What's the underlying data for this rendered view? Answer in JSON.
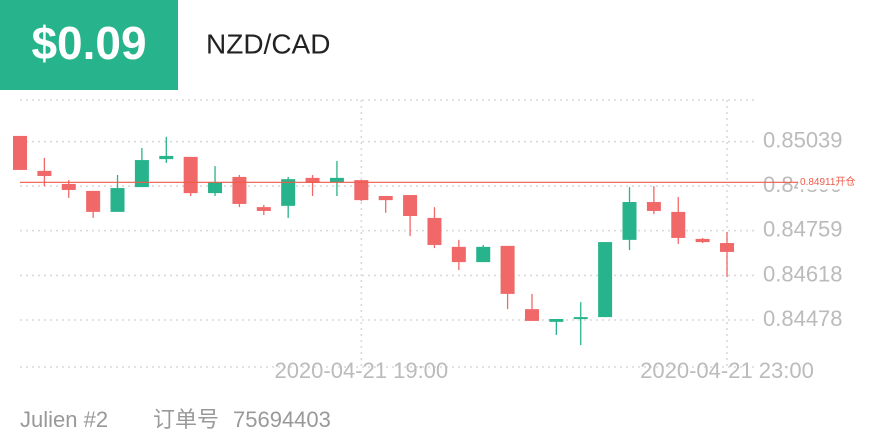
{
  "header": {
    "profit": "$0.09",
    "symbol": "NZD/CAD"
  },
  "chart_data": {
    "type": "candlestick",
    "categories": [
      null,
      null,
      null,
      null,
      null,
      null,
      null,
      null,
      null,
      null,
      null,
      null,
      null,
      null,
      "2020-04-21 19:00",
      null,
      null,
      null,
      null,
      null,
      null,
      null,
      null,
      null,
      null,
      null,
      null,
      null,
      null,
      "2020-04-21 23:00"
    ],
    "open": [
      0.85057,
      0.84947,
      0.84906,
      0.84884,
      0.84818,
      0.84896,
      0.84984,
      0.84991,
      0.84877,
      0.84928,
      0.84833,
      0.84837,
      0.84925,
      0.84912,
      0.84918,
      0.84868,
      0.84871,
      0.84799,
      0.84708,
      0.8466,
      0.84711,
      0.84512,
      0.84472,
      0.84484,
      0.84487,
      0.8473,
      0.84849,
      0.84818,
      0.84733,
      0.8472
    ],
    "high": [
      0.85057,
      0.84988,
      0.84918,
      0.84884,
      0.84934,
      0.85019,
      0.85054,
      0.84991,
      0.84962,
      0.84934,
      0.8484,
      0.84928,
      0.84934,
      0.84978,
      0.84918,
      0.84868,
      0.84871,
      0.84833,
      0.8473,
      0.84714,
      0.84711,
      0.8456,
      0.84481,
      0.84534,
      0.84723,
      0.84896,
      0.84899,
      0.84865,
      0.84736,
      0.84755
    ],
    "low": [
      0.8495,
      0.84899,
      0.84862,
      0.84799,
      0.84818,
      0.84896,
      0.84972,
      0.84868,
      0.84868,
      0.84833,
      0.84808,
      0.84799,
      0.84868,
      0.84868,
      0.84852,
      0.84815,
      0.84742,
      0.84704,
      0.84635,
      0.8466,
      0.84512,
      0.84475,
      0.84431,
      0.84399,
      0.84487,
      0.84698,
      0.84811,
      0.84717,
      0.8472,
      0.84613
    ],
    "close": [
      0.8495,
      0.84931,
      0.84887,
      0.84818,
      0.84893,
      0.84981,
      0.84994,
      0.84877,
      0.84912,
      0.84843,
      0.84821,
      0.84921,
      0.84909,
      0.84925,
      0.84855,
      0.84855,
      0.84805,
      0.84714,
      0.8466,
      0.84708,
      0.8456,
      0.84475,
      0.84481,
      0.84487,
      0.84723,
      0.84849,
      0.84821,
      0.84736,
      0.84723,
      0.84692
    ],
    "up_color": "#27b38b",
    "down_color": "#f06868",
    "ylim": [
      0.8433,
      0.8517
    ],
    "yticks": [
      0.85039,
      0.84899,
      0.84759,
      0.84618,
      0.84478
    ],
    "open_position": {
      "value": 0.84911,
      "label": "0.84911开仓"
    },
    "open_color": "#f05a4a",
    "grid": true
  },
  "footer": {
    "account": "Julien #2",
    "order_label": "订单号",
    "order_number": "75694403"
  }
}
